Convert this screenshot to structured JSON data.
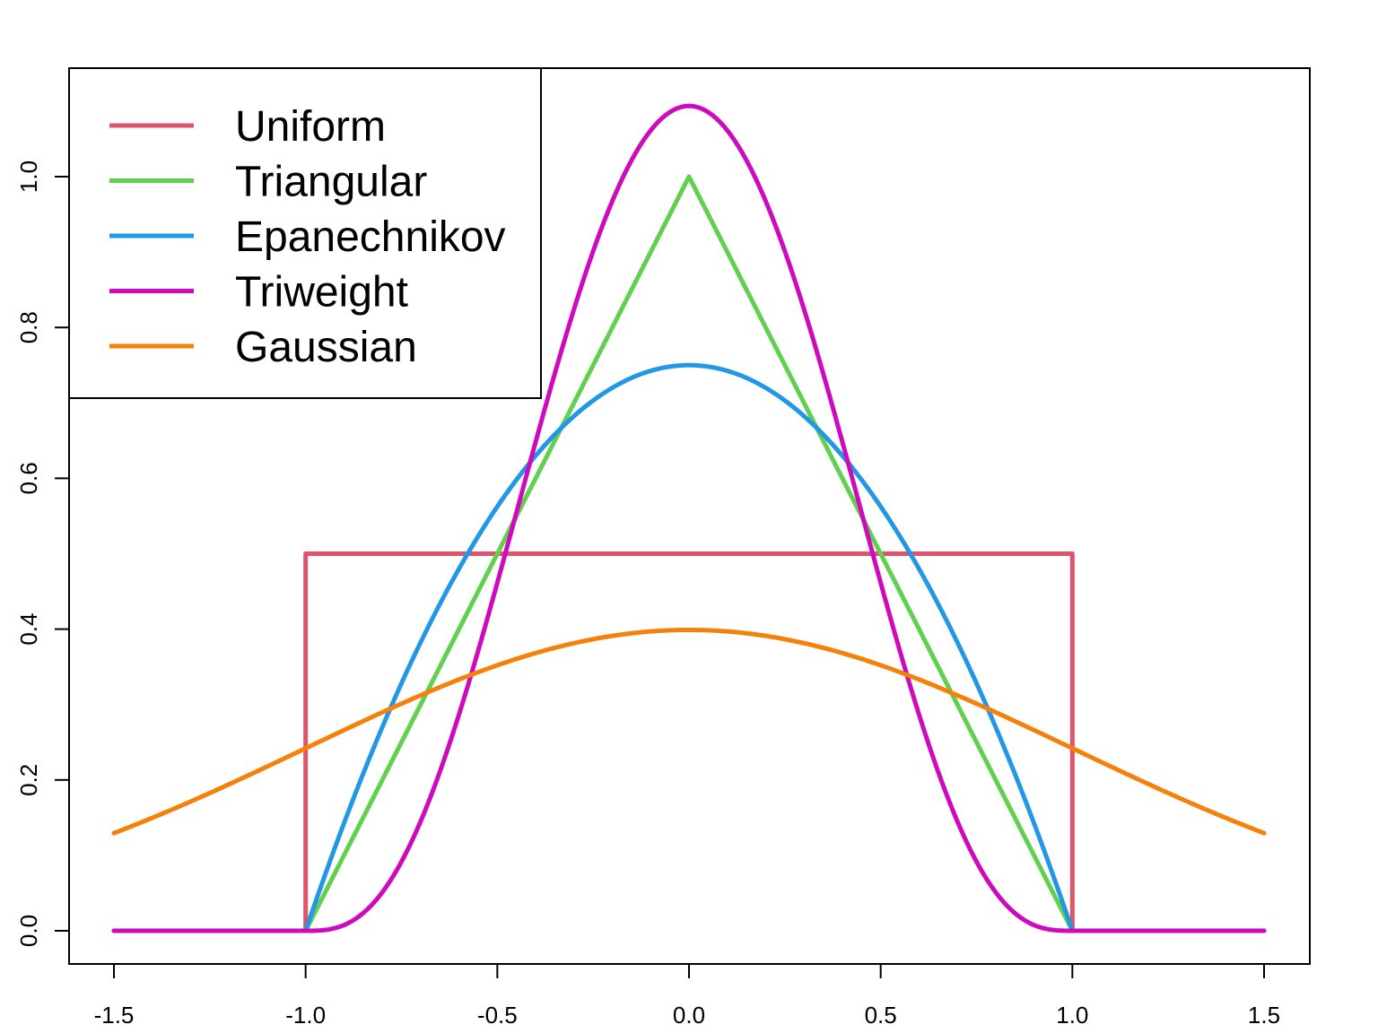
{
  "chart_data": {
    "type": "line",
    "title": "",
    "xlabel": "",
    "ylabel": "",
    "xlim": [
      -1.5,
      1.5
    ],
    "ylim": [
      0,
      1.1
    ],
    "x_ticks": [
      "-1.5",
      "-1.0",
      "-0.5",
      "0.0",
      "0.5",
      "1.0",
      "1.5"
    ],
    "y_ticks": [
      "0.0",
      "0.2",
      "0.4",
      "0.6",
      "0.8",
      "1.0"
    ],
    "grid": false,
    "legend_position": "top-left",
    "series": [
      {
        "name": "Uniform",
        "color": "#DF536B",
        "x": [
          -1.5,
          -1.0,
          -1.0,
          1.0,
          1.0,
          1.5
        ],
        "y": [
          0,
          0,
          0.5,
          0.5,
          0,
          0
        ]
      },
      {
        "name": "Triangular",
        "color": "#61D04F",
        "x": [
          -1.5,
          -1.0,
          0.0,
          1.0,
          1.5
        ],
        "y": [
          0,
          0,
          1.0,
          0,
          0
        ]
      },
      {
        "name": "Epanechnikov",
        "color": "#2297E6",
        "x": [
          -1.5,
          -1.0,
          -0.9,
          -0.8,
          -0.7,
          -0.6,
          -0.5,
          -0.4,
          -0.3,
          -0.2,
          -0.1,
          0.0,
          0.1,
          0.2,
          0.3,
          0.4,
          0.5,
          0.6,
          0.7,
          0.8,
          0.9,
          1.0,
          1.5
        ],
        "y": [
          0,
          0,
          0.1425,
          0.27,
          0.3825,
          0.48,
          0.5625,
          0.63,
          0.6825,
          0.72,
          0.7425,
          0.75,
          0.7425,
          0.72,
          0.6825,
          0.63,
          0.5625,
          0.48,
          0.3825,
          0.27,
          0.1425,
          0,
          0
        ]
      },
      {
        "name": "Triweight",
        "color": "#CD0BBC",
        "x": [
          -1.5,
          -1.0,
          -0.9,
          -0.8,
          -0.7,
          -0.6,
          -0.5,
          -0.4,
          -0.3,
          -0.2,
          -0.1,
          0.0,
          0.1,
          0.2,
          0.3,
          0.4,
          0.5,
          0.6,
          0.7,
          0.8,
          0.9,
          1.0,
          1.5
        ],
        "y": [
          0,
          0,
          0.0075,
          0.051,
          0.1446,
          0.2863,
          0.4614,
          0.6459,
          0.8154,
          0.9461,
          1.0276,
          1.0938,
          1.0276,
          0.9461,
          0.8154,
          0.6459,
          0.4614,
          0.2863,
          0.1446,
          0.051,
          0.0075,
          0,
          0
        ]
      },
      {
        "name": "Gaussian",
        "color": "#F5800A",
        "x": [
          -1.5,
          -1.25,
          -1.0,
          -0.75,
          -0.5,
          -0.25,
          0.0,
          0.25,
          0.5,
          0.75,
          1.0,
          1.25,
          1.5
        ],
        "y": [
          0.1295,
          0.1826,
          0.242,
          0.3011,
          0.3521,
          0.3867,
          0.3989,
          0.3867,
          0.3521,
          0.3011,
          0.242,
          0.1826,
          0.1295
        ]
      }
    ]
  }
}
